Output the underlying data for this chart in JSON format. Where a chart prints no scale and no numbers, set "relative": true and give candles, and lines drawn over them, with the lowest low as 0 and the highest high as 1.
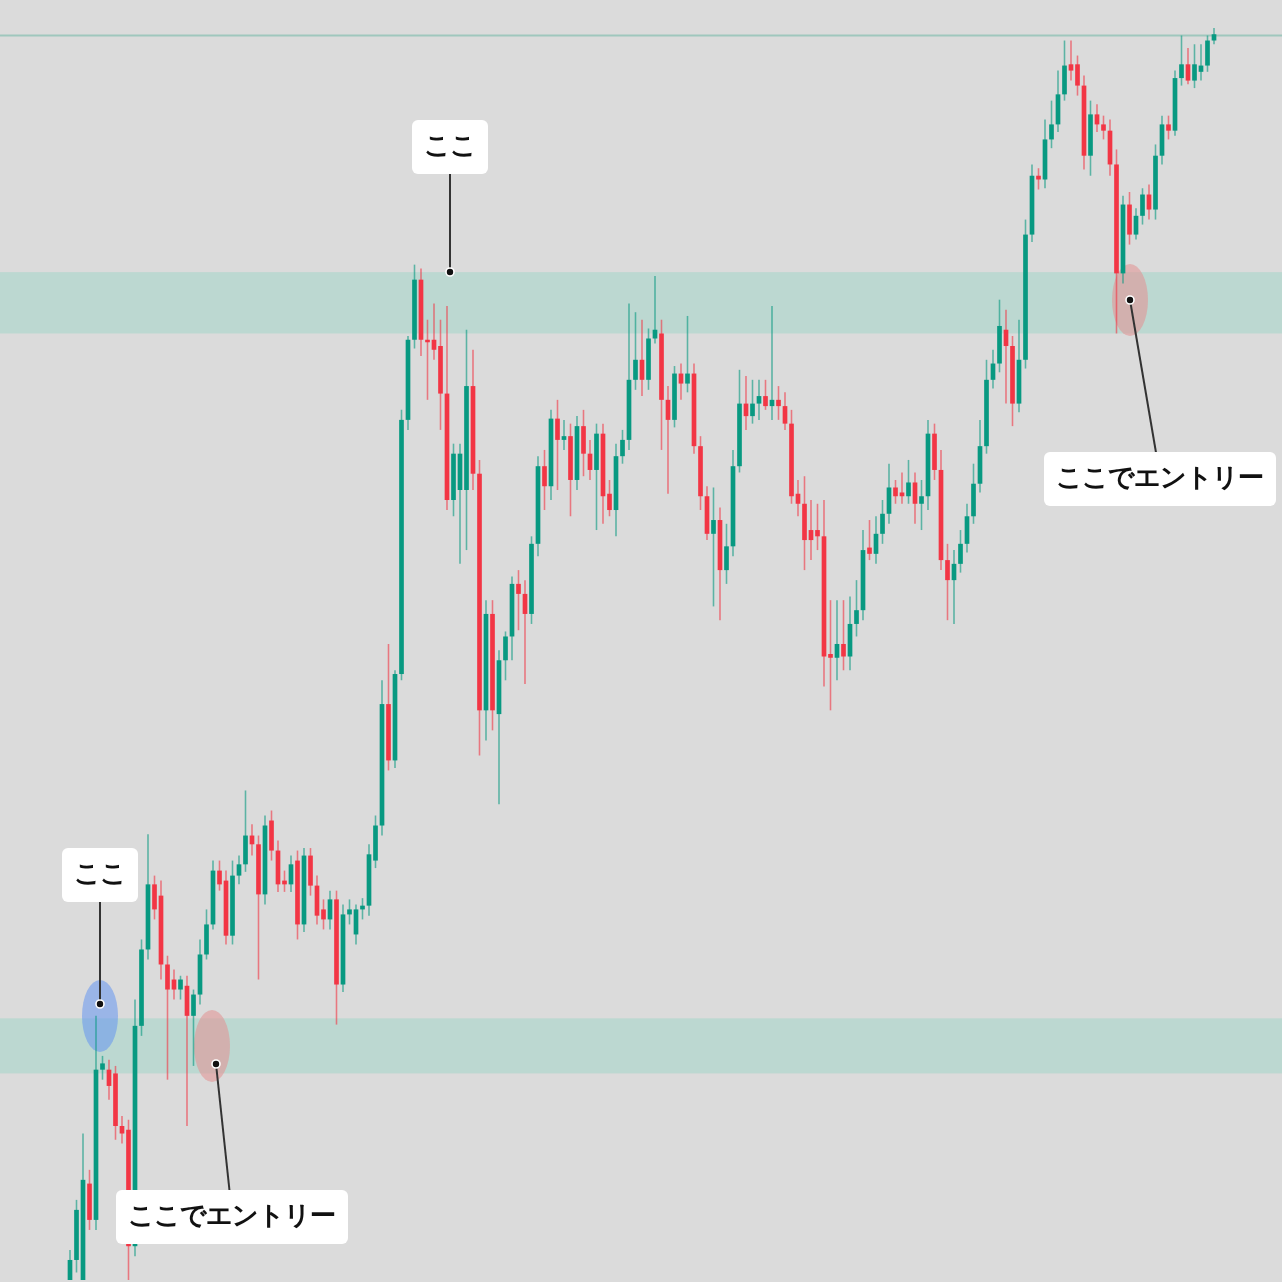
{
  "chart_data": {
    "type": "candlestick",
    "relative": true,
    "categories": [
      null,
      null,
      null,
      null,
      null,
      null,
      null,
      null,
      null,
      null,
      null,
      null,
      null,
      null,
      null,
      null,
      null,
      null,
      null,
      null,
      null,
      null,
      null,
      null,
      null,
      null,
      null,
      null,
      null,
      null,
      null,
      null,
      null,
      null,
      null,
      null,
      null,
      null,
      null,
      null,
      null,
      null,
      null,
      null,
      null,
      null,
      null,
      null,
      null,
      null,
      null,
      null,
      null,
      null,
      null,
      null,
      null,
      null,
      null,
      null,
      null,
      null,
      null,
      null,
      null,
      null,
      null,
      null,
      null,
      null,
      null,
      null,
      null,
      null,
      null,
      null,
      null,
      null,
      null,
      null,
      null,
      null,
      null,
      null,
      null,
      null,
      null,
      null,
      null,
      null,
      null,
      null,
      null,
      null,
      null,
      null,
      null,
      null,
      null,
      null,
      null,
      null,
      null,
      null,
      null,
      null,
      null,
      null,
      null,
      null,
      null,
      null,
      null,
      null,
      null,
      null,
      null,
      null,
      null,
      null,
      null,
      null,
      null,
      null,
      null,
      null,
      null,
      null,
      null,
      null,
      null,
      null,
      null,
      null,
      null,
      null,
      null,
      null,
      null,
      null,
      null,
      null,
      null,
      null,
      null,
      null,
      null,
      null,
      null,
      null,
      null,
      null,
      null,
      null,
      null,
      null,
      null,
      null,
      null,
      null,
      null,
      null,
      null,
      null,
      null,
      null,
      null,
      null,
      null,
      null,
      null,
      null,
      null,
      null,
      null,
      null,
      null
    ],
    "ohlc": [
      [
        0,
        0.024,
        0,
        0.016
      ],
      [
        0.016,
        0.064,
        0.006,
        0.056
      ],
      [
        0,
        0.117,
        0,
        0.08
      ],
      [
        0.077,
        0.088,
        0.04,
        0.048
      ],
      [
        0.048,
        0.211,
        0.04,
        0.168
      ],
      [
        0.168,
        0.179,
        0.16,
        0.173
      ],
      [
        0.168,
        0.176,
        0.144,
        0.155
      ],
      [
        0.165,
        0.171,
        0.112,
        0.123
      ],
      [
        0.123,
        0.131,
        0.109,
        0.117
      ],
      [
        0.12,
        0.128,
        0,
        0.027
      ],
      [
        0.027,
        0.224,
        0.019,
        0.203
      ],
      [
        0.203,
        0.272,
        0.195,
        0.264
      ],
      [
        0.264,
        0.356,
        0.256,
        0.316
      ],
      [
        0.316,
        0.323,
        0.288,
        0.296
      ],
      [
        0.307,
        0.319,
        0.24,
        0.252
      ],
      [
        0.252,
        0.259,
        0.16,
        0.232
      ],
      [
        0.24,
        0.248,
        0.224,
        0.232
      ],
      [
        0.232,
        0.243,
        0.224,
        0.24
      ],
      [
        0.235,
        0.243,
        0.123,
        0.211
      ],
      [
        0.211,
        0.232,
        0.171,
        0.228
      ],
      [
        0.228,
        0.272,
        0.22,
        0.26
      ],
      [
        0.26,
        0.296,
        0.256,
        0.284
      ],
      [
        0.284,
        0.335,
        0.28,
        0.327
      ],
      [
        0.327,
        0.335,
        0.311,
        0.316
      ],
      [
        0.319,
        0.327,
        0.268,
        0.275
      ],
      [
        0.275,
        0.335,
        0.268,
        0.323
      ],
      [
        0.323,
        0.339,
        0.316,
        0.332
      ],
      [
        0.332,
        0.391,
        0.326,
        0.355
      ],
      [
        0.355,
        0.364,
        0.339,
        0.348
      ],
      [
        0.348,
        0.355,
        0.24,
        0.308
      ],
      [
        0.308,
        0.371,
        0.3,
        0.363
      ],
      [
        0.367,
        0.375,
        0.335,
        0.343
      ],
      [
        0.343,
        0.351,
        0.31,
        0.316
      ],
      [
        0.319,
        0.327,
        0.31,
        0.316
      ],
      [
        0.316,
        0.339,
        0.31,
        0.332
      ],
      [
        0.335,
        0.343,
        0.272,
        0.284
      ],
      [
        0.284,
        0.345,
        0.278,
        0.339
      ],
      [
        0.339,
        0.345,
        0.307,
        0.315
      ],
      [
        0.315,
        0.323,
        0.284,
        0.291
      ],
      [
        0.296,
        0.304,
        0.28,
        0.288
      ],
      [
        0.288,
        0.311,
        0.28,
        0.304
      ],
      [
        0.304,
        0.311,
        0.204,
        0.236
      ],
      [
        0.236,
        0.3,
        0.23,
        0.292
      ],
      [
        0.292,
        0.304,
        0.284,
        0.296
      ],
      [
        0.276,
        0.3,
        0.268,
        0.296
      ],
      [
        0.296,
        0.305,
        0.288,
        0.299
      ],
      [
        0.299,
        0.348,
        0.291,
        0.34
      ],
      [
        0.335,
        0.371,
        0.329,
        0.363
      ],
      [
        0.363,
        0.479,
        0.355,
        0.46
      ],
      [
        0.46,
        0.508,
        0.407,
        0.415
      ],
      [
        0.415,
        0.487,
        0.409,
        0.484
      ],
      [
        0.484,
        0.695,
        0.479,
        0.687
      ],
      [
        0.687,
        0.754,
        0.679,
        0.751
      ],
      [
        0.751,
        0.811,
        0.744,
        0.799
      ],
      [
        0.799,
        0.808,
        0.738,
        0.751
      ],
      [
        0.751,
        0.767,
        0.703,
        0.749
      ],
      [
        0.751,
        0.78,
        0.735,
        0.743
      ],
      [
        0.746,
        0.767,
        0.679,
        0.708
      ],
      [
        0.708,
        0.778,
        0.615,
        0.623
      ],
      [
        0.623,
        0.668,
        0.61,
        0.66
      ],
      [
        0.631,
        0.668,
        0.572,
        0.66
      ],
      [
        0.631,
        0.759,
        0.583,
        0.714
      ],
      [
        0.714,
        0.743,
        0.631,
        0.644
      ],
      [
        0.644,
        0.655,
        0.419,
        0.455
      ],
      [
        0.455,
        0.543,
        0.431,
        0.532
      ],
      [
        0.532,
        0.543,
        0.439,
        0.455
      ],
      [
        0.452,
        0.503,
        0.38,
        0.495
      ],
      [
        0.495,
        0.518,
        0.479,
        0.514
      ],
      [
        0.514,
        0.562,
        0.495,
        0.556
      ],
      [
        0.556,
        0.567,
        0.519,
        0.548
      ],
      [
        0.548,
        0.559,
        0.476,
        0.532
      ],
      [
        0.532,
        0.594,
        0.524,
        0.588
      ],
      [
        0.588,
        0.658,
        0.578,
        0.65
      ],
      [
        0.65,
        0.663,
        0.615,
        0.634
      ],
      [
        0.634,
        0.695,
        0.623,
        0.688
      ],
      [
        0.688,
        0.703,
        0.631,
        0.671
      ],
      [
        0.671,
        0.687,
        0.663,
        0.674
      ],
      [
        0.674,
        0.684,
        0.61,
        0.639
      ],
      [
        0.639,
        0.69,
        0.631,
        0.682
      ],
      [
        0.682,
        0.695,
        0.642,
        0.66
      ],
      [
        0.66,
        0.671,
        0.639,
        0.647
      ],
      [
        0.647,
        0.684,
        0.599,
        0.676
      ],
      [
        0.676,
        0.684,
        0.604,
        0.626
      ],
      [
        0.628,
        0.639,
        0.61,
        0.615
      ],
      [
        0.615,
        0.668,
        0.594,
        0.658
      ],
      [
        0.658,
        0.679,
        0.652,
        0.671
      ],
      [
        0.671,
        0.78,
        0.663,
        0.719
      ],
      [
        0.719,
        0.773,
        0.711,
        0.735
      ],
      [
        0.735,
        0.767,
        0.706,
        0.719
      ],
      [
        0.719,
        0.76,
        0.711,
        0.752
      ],
      [
        0.752,
        0.802,
        0.748,
        0.759
      ],
      [
        0.756,
        0.767,
        0.663,
        0.703
      ],
      [
        0.703,
        0.714,
        0.628,
        0.687
      ],
      [
        0.687,
        0.73,
        0.681,
        0.724
      ],
      [
        0.724,
        0.732,
        0.703,
        0.716
      ],
      [
        0.716,
        0.77,
        0.709,
        0.724
      ],
      [
        0.724,
        0.732,
        0.66,
        0.666
      ],
      [
        0.666,
        0.674,
        0.615,
        0.626
      ],
      [
        0.626,
        0.634,
        0.591,
        0.596
      ],
      [
        0.596,
        0.633,
        0.538,
        0.607
      ],
      [
        0.607,
        0.617,
        0.527,
        0.567
      ],
      [
        0.567,
        0.604,
        0.556,
        0.586
      ],
      [
        0.586,
        0.663,
        0.578,
        0.65
      ],
      [
        0.65,
        0.727,
        0.645,
        0.7
      ],
      [
        0.7,
        0.722,
        0.679,
        0.69
      ],
      [
        0.69,
        0.719,
        0.684,
        0.7
      ],
      [
        0.7,
        0.719,
        0.687,
        0.706
      ],
      [
        0.706,
        0.719,
        0.695,
        0.698
      ],
      [
        0.698,
        0.778,
        0.687,
        0.703
      ],
      [
        0.703,
        0.714,
        0.687,
        0.698
      ],
      [
        0.698,
        0.709,
        0.679,
        0.684
      ],
      [
        0.684,
        0.695,
        0.62,
        0.626
      ],
      [
        0.628,
        0.639,
        0.61,
        0.62
      ],
      [
        0.62,
        0.642,
        0.567,
        0.591
      ],
      [
        0.599,
        0.623,
        0.575,
        0.591
      ],
      [
        0.599,
        0.62,
        0.583,
        0.594
      ],
      [
        0.594,
        0.623,
        0.474,
        0.498
      ],
      [
        0.5,
        0.543,
        0.455,
        0.497
      ],
      [
        0.497,
        0.543,
        0.479,
        0.508
      ],
      [
        0.508,
        0.543,
        0.487,
        0.498
      ],
      [
        0.498,
        0.546,
        0.487,
        0.524
      ],
      [
        0.524,
        0.559,
        0.514,
        0.535
      ],
      [
        0.535,
        0.599,
        0.527,
        0.583
      ],
      [
        0.585,
        0.607,
        0.575,
        0.58
      ],
      [
        0.58,
        0.61,
        0.572,
        0.596
      ],
      [
        0.596,
        0.623,
        0.588,
        0.612
      ],
      [
        0.612,
        0.652,
        0.604,
        0.633
      ],
      [
        0.633,
        0.639,
        0.62,
        0.626
      ],
      [
        0.629,
        0.645,
        0.62,
        0.626
      ],
      [
        0.626,
        0.655,
        0.62,
        0.637
      ],
      [
        0.637,
        0.645,
        0.604,
        0.62
      ],
      [
        0.62,
        0.639,
        0.599,
        0.626
      ],
      [
        0.626,
        0.687,
        0.615,
        0.676
      ],
      [
        0.676,
        0.684,
        0.639,
        0.647
      ],
      [
        0.647,
        0.663,
        0.567,
        0.575
      ],
      [
        0.575,
        0.588,
        0.527,
        0.559
      ],
      [
        0.559,
        0.583,
        0.524,
        0.572
      ],
      [
        0.572,
        0.599,
        0.565,
        0.588
      ],
      [
        0.588,
        0.62,
        0.581,
        0.61
      ],
      [
        0.61,
        0.652,
        0.604,
        0.636
      ],
      [
        0.636,
        0.687,
        0.629,
        0.666
      ],
      [
        0.666,
        0.735,
        0.66,
        0.719
      ],
      [
        0.719,
        0.743,
        0.712,
        0.732
      ],
      [
        0.732,
        0.783,
        0.725,
        0.762
      ],
      [
        0.759,
        0.775,
        0.7,
        0.746
      ],
      [
        0.746,
        0.754,
        0.682,
        0.7
      ],
      [
        0.7,
        0.767,
        0.693,
        0.735
      ],
      [
        0.735,
        0.847,
        0.728,
        0.835
      ],
      [
        0.835,
        0.891,
        0.829,
        0.882
      ],
      [
        0.882,
        0.888,
        0.871,
        0.879
      ],
      [
        0.879,
        0.927,
        0.872,
        0.911
      ],
      [
        0.911,
        0.942,
        0.904,
        0.923
      ],
      [
        0.923,
        0.966,
        0.917,
        0.947
      ],
      [
        0.947,
        0.99,
        0.942,
        0.97
      ],
      [
        0.971,
        0.99,
        0.958,
        0.966
      ],
      [
        0.971,
        0.978,
        0.946,
        0.954
      ],
      [
        0.954,
        0.962,
        0.887,
        0.898
      ],
      [
        0.898,
        0.942,
        0.882,
        0.931
      ],
      [
        0.931,
        0.939,
        0.917,
        0.923
      ],
      [
        0.923,
        0.93,
        0.911,
        0.918
      ],
      [
        0.918,
        0.927,
        0.882,
        0.891
      ],
      [
        0.891,
        0.903,
        0.756,
        0.804
      ],
      [
        0.804,
        0.866,
        0.796,
        0.859
      ],
      [
        0.859,
        0.869,
        0.827,
        0.835
      ],
      [
        0.835,
        0.856,
        0.831,
        0.85
      ],
      [
        0.85,
        0.872,
        0.843,
        0.867
      ],
      [
        0.867,
        0.875,
        0.847,
        0.855
      ],
      [
        0.855,
        0.907,
        0.847,
        0.898
      ],
      [
        0.898,
        0.93,
        0.891,
        0.923
      ],
      [
        0.923,
        0.93,
        0.911,
        0.918
      ],
      [
        0.918,
        0.966,
        0.914,
        0.96
      ],
      [
        0.96,
        0.994,
        0.954,
        0.971
      ],
      [
        0.971,
        0.984,
        0.955,
        0.958
      ],
      [
        0.958,
        0.987,
        0.952,
        0.971
      ],
      [
        0.965,
        0.987,
        0.958,
        0.97
      ],
      [
        0.97,
        0.994,
        0.965,
        0.99
      ],
      [
        0.99,
        1,
        0.987,
        0.995
      ]
    ],
    "bands": [
      {
        "axis": "y",
        "from": 0.756,
        "to": 0.805,
        "color": "#bcd8d1"
      },
      {
        "axis": "y",
        "from": 0.165,
        "to": 0.209,
        "color": "#bcd8d1"
      }
    ],
    "ref_lines": [
      {
        "axis": "y",
        "value": 0.994,
        "color": "#9fc7bd"
      }
    ],
    "annotations": [
      "ここ",
      "ここ",
      "ここでエントリー",
      "ここでエントリー"
    ]
  }
}
